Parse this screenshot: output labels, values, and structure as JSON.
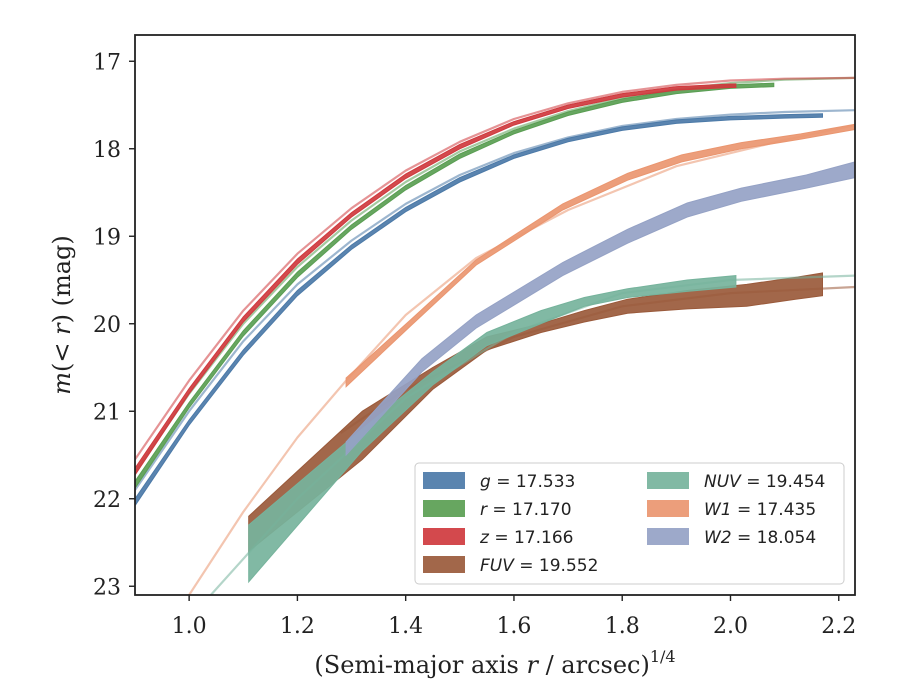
{
  "chart_data": {
    "type": "line",
    "xlabel_main": "(Semi-major axis ",
    "xlabel_var": "r",
    "xlabel_mid": " / arcsec)",
    "xlabel_sup": "1/4",
    "ylabel_main": "m",
    "ylabel_open": "(< ",
    "ylabel_var": "r",
    "ylabel_close": ") (mag)",
    "xlim": [
      0.9,
      2.23
    ],
    "ylim": [
      23.1,
      16.7
    ],
    "y_inverted": true,
    "x_ticks": [
      "1.0",
      "1.2",
      "1.4",
      "1.6",
      "1.8",
      "2.0",
      "2.2"
    ],
    "y_ticks": [
      "17",
      "18",
      "19",
      "20",
      "21",
      "22",
      "23"
    ],
    "grid": false,
    "legend_position": "lower-right",
    "legend": [
      {
        "id": "g",
        "italic": "g",
        "rest": " = 17.533",
        "color": "#4c7aa8"
      },
      {
        "id": "r",
        "italic": "r",
        "rest": " = 17.170",
        "color": "#5a9e53"
      },
      {
        "id": "z",
        "italic": "z",
        "rest": " = 17.166",
        "color": "#cf3a3e"
      },
      {
        "id": "FUV",
        "italic": "FUV",
        "rest": " = 19.552",
        "color": "#9a5a3b"
      },
      {
        "id": "NUV",
        "italic": "NUV",
        "rest": " = 19.454",
        "color": "#76b39c"
      },
      {
        "id": "W1",
        "italic": "W1",
        "rest": " = 17.435",
        "color": "#ea9670"
      },
      {
        "id": "W2",
        "italic": "W2",
        "rest": " = 18.054",
        "color": "#95a2c5"
      }
    ],
    "series": [
      {
        "name": "FUV",
        "color": "#9a5a3b",
        "model": {
          "x": [
            1.28,
            1.4,
            1.6,
            1.8,
            2.0,
            2.23
          ],
          "y": [
            21.25,
            20.75,
            20.15,
            19.8,
            19.65,
            19.58
          ]
        },
        "band": {
          "x": [
            1.11,
            1.32,
            1.45,
            1.55,
            1.65,
            1.73,
            1.81,
            1.92,
            2.03,
            2.12,
            2.17
          ],
          "lo": [
            22.2,
            21.0,
            20.5,
            20.15,
            20.0,
            19.85,
            19.72,
            19.62,
            19.55,
            19.47,
            19.42
          ],
          "hi": [
            22.6,
            21.55,
            20.75,
            20.3,
            20.1,
            19.98,
            19.88,
            19.83,
            19.8,
            19.72,
            19.68
          ]
        }
      },
      {
        "name": "NUV",
        "color": "#76b39c",
        "model": {
          "x": [
            1.04,
            1.2,
            1.4,
            1.6,
            1.8,
            2.0,
            2.23
          ],
          "y": [
            23.1,
            22.0,
            20.85,
            20.1,
            19.65,
            19.5,
            19.45
          ]
        },
        "band": {
          "x": [
            1.11,
            1.32,
            1.45,
            1.55,
            1.65,
            1.73,
            1.81,
            1.92,
            2.01
          ],
          "lo": [
            22.3,
            21.2,
            20.55,
            20.1,
            19.85,
            19.7,
            19.6,
            19.5,
            19.45
          ],
          "hi": [
            22.95,
            21.45,
            20.7,
            20.25,
            20.0,
            19.8,
            19.7,
            19.63,
            19.58
          ]
        }
      },
      {
        "name": "W1",
        "color": "#ea9670",
        "model": {
          "x": [
            1.0,
            1.1,
            1.2,
            1.29,
            1.4,
            1.53,
            1.7,
            1.9,
            2.1,
            2.23
          ],
          "y": [
            23.1,
            22.15,
            21.3,
            20.65,
            19.9,
            19.25,
            18.7,
            18.2,
            17.9,
            17.73
          ]
        },
        "band": {
          "x": [
            1.29,
            1.41,
            1.53,
            1.69,
            1.81,
            1.91,
            2.02,
            2.13,
            2.23
          ],
          "lo": [
            20.62,
            19.95,
            19.27,
            18.63,
            18.28,
            18.07,
            17.93,
            17.83,
            17.72
          ],
          "hi": [
            20.72,
            20.02,
            19.33,
            18.7,
            18.36,
            18.15,
            18.0,
            17.89,
            17.78
          ]
        }
      },
      {
        "name": "W2",
        "color": "#95a2c5",
        "model": null,
        "band": {
          "x": [
            1.29,
            1.43,
            1.53,
            1.69,
            1.81,
            1.92,
            2.02,
            2.14,
            2.23
          ],
          "lo": [
            21.35,
            20.4,
            19.9,
            19.3,
            18.92,
            18.62,
            18.45,
            18.3,
            18.15
          ],
          "hi": [
            21.5,
            20.55,
            20.05,
            19.45,
            19.08,
            18.78,
            18.6,
            18.45,
            18.33
          ]
        }
      },
      {
        "name": "g",
        "color": "#4c7aa8",
        "model": {
          "x": [
            0.9,
            1.0,
            1.1,
            1.2,
            1.3,
            1.4,
            1.5,
            1.6,
            1.7,
            1.8,
            1.9,
            2.0,
            2.1,
            2.23
          ],
          "y": [
            21.9,
            21.0,
            20.2,
            19.55,
            19.05,
            18.63,
            18.3,
            18.05,
            17.87,
            17.74,
            17.66,
            17.61,
            17.58,
            17.56
          ]
        },
        "band": {
          "x": [
            0.9,
            1.0,
            1.1,
            1.2,
            1.3,
            1.4,
            1.5,
            1.6,
            1.7,
            1.8,
            1.9,
            2.0,
            2.1,
            2.17
          ],
          "lo": [
            22.0,
            21.1,
            20.3,
            19.62,
            19.1,
            18.67,
            18.33,
            18.07,
            17.88,
            17.75,
            17.67,
            17.63,
            17.61,
            17.6
          ],
          "hi": [
            22.08,
            21.16,
            20.36,
            19.68,
            19.15,
            18.72,
            18.38,
            18.11,
            17.92,
            17.79,
            17.71,
            17.67,
            17.65,
            17.64
          ]
        }
      },
      {
        "name": "r",
        "color": "#5a9e53",
        "model": {
          "x": [
            0.9,
            1.0,
            1.1,
            1.2,
            1.3,
            1.4,
            1.5,
            1.6,
            1.7,
            1.8,
            1.9,
            2.0,
            2.1,
            2.23
          ],
          "y": [
            21.7,
            20.8,
            20.0,
            19.35,
            18.82,
            18.38,
            18.03,
            17.77,
            17.57,
            17.42,
            17.32,
            17.25,
            17.21,
            17.19
          ]
        },
        "band": {
          "x": [
            0.9,
            1.0,
            1.1,
            1.2,
            1.3,
            1.4,
            1.5,
            1.6,
            1.7,
            1.8,
            1.9,
            2.0,
            2.08
          ],
          "lo": [
            21.8,
            20.9,
            20.08,
            19.41,
            18.87,
            18.42,
            18.06,
            17.79,
            17.58,
            17.43,
            17.33,
            17.27,
            17.25
          ],
          "hi": [
            21.88,
            20.96,
            20.14,
            19.47,
            18.92,
            18.47,
            18.11,
            17.83,
            17.62,
            17.47,
            17.37,
            17.31,
            17.29
          ]
        }
      },
      {
        "name": "z",
        "color": "#cf3a3e",
        "model": {
          "x": [
            0.9,
            1.0,
            1.1,
            1.2,
            1.3,
            1.4,
            1.5,
            1.6,
            1.7,
            1.8,
            1.9,
            2.0,
            2.1,
            2.23
          ],
          "y": [
            21.55,
            20.65,
            19.85,
            19.2,
            18.68,
            18.25,
            17.92,
            17.66,
            17.48,
            17.35,
            17.27,
            17.22,
            17.2,
            17.19
          ]
        },
        "band": {
          "x": [
            0.9,
            1.0,
            1.1,
            1.2,
            1.3,
            1.4,
            1.5,
            1.6,
            1.7,
            1.8,
            1.9,
            2.0,
            2.01
          ],
          "lo": [
            21.65,
            20.74,
            19.92,
            19.26,
            18.73,
            18.29,
            17.95,
            17.69,
            17.5,
            17.37,
            17.29,
            17.26,
            17.26
          ],
          "hi": [
            21.73,
            20.8,
            19.98,
            19.32,
            18.78,
            18.34,
            18.0,
            17.73,
            17.54,
            17.41,
            17.33,
            17.3,
            17.3
          ]
        }
      }
    ]
  }
}
